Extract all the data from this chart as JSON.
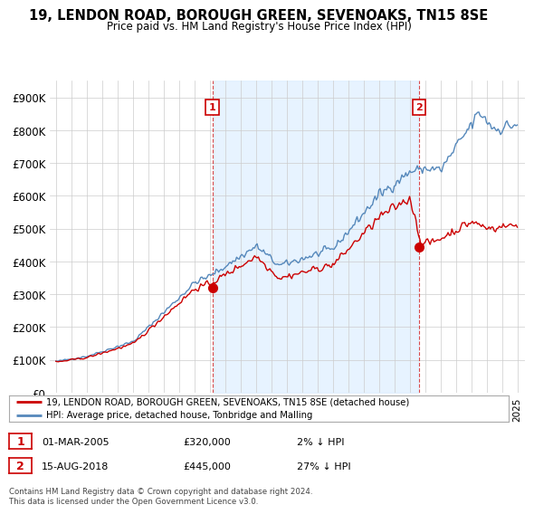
{
  "title": "19, LENDON ROAD, BOROUGH GREEN, SEVENOAKS, TN15 8SE",
  "subtitle": "Price paid vs. HM Land Registry's House Price Index (HPI)",
  "legend_line1": "19, LENDON ROAD, BOROUGH GREEN, SEVENOAKS, TN15 8SE (detached house)",
  "legend_line2": "HPI: Average price, detached house, Tonbridge and Malling",
  "annotation1_label": "1",
  "annotation1_date": "01-MAR-2005",
  "annotation1_price": "£320,000",
  "annotation1_hpi": "2% ↓ HPI",
  "annotation2_label": "2",
  "annotation2_date": "15-AUG-2018",
  "annotation2_price": "£445,000",
  "annotation2_hpi": "27% ↓ HPI",
  "footer": "Contains HM Land Registry data © Crown copyright and database right 2024.\nThis data is licensed under the Open Government Licence v3.0.",
  "hpi_color": "#5588bb",
  "price_color": "#cc0000",
  "annotation_color": "#cc0000",
  "background_color": "#ffffff",
  "shade_color": "#ddeeff",
  "ylim": [
    0,
    950000
  ],
  "yticks": [
    0,
    100000,
    200000,
    300000,
    400000,
    500000,
    600000,
    700000,
    800000,
    900000
  ],
  "ytick_labels": [
    "£0",
    "£100K",
    "£200K",
    "£300K",
    "£400K",
    "£500K",
    "£600K",
    "£700K",
    "£800K",
    "£900K"
  ],
  "sale1_year": 2005.17,
  "sale1_price": 320000,
  "sale2_year": 2018.625,
  "sale2_price": 445000
}
